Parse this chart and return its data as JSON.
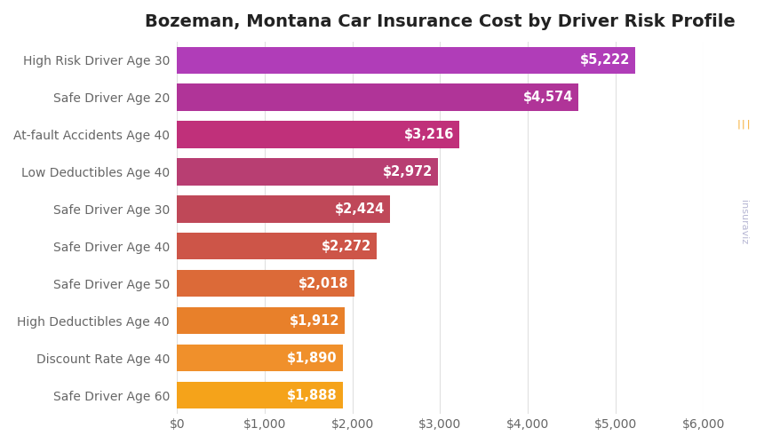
{
  "title": "Bozeman, Montana Car Insurance Cost by Driver Risk Profile",
  "categories": [
    "Safe Driver Age 60",
    "Discount Rate Age 40",
    "High Deductibles Age 40",
    "Safe Driver Age 50",
    "Safe Driver Age 40",
    "Safe Driver Age 30",
    "Low Deductibles Age 40",
    "At-fault Accidents Age 40",
    "Safe Driver Age 20",
    "High Risk Driver Age 30"
  ],
  "values": [
    1888,
    1890,
    1912,
    2018,
    2272,
    2424,
    2972,
    3216,
    4574,
    5222
  ],
  "bar_colors": [
    "#F5A31A",
    "#F0902B",
    "#E8802A",
    "#DC6A38",
    "#CD5548",
    "#BF4858",
    "#B83E72",
    "#C0307A",
    "#B03498",
    "#B03DB8"
  ],
  "xlim": [
    0,
    6000
  ],
  "xticks": [
    0,
    1000,
    2000,
    3000,
    4000,
    5000,
    6000
  ],
  "background_color": "#ffffff",
  "grid_color": "#e0e0e0",
  "label_color": "#ffffff",
  "title_fontsize": 14,
  "tick_fontsize": 10,
  "bar_label_fontsize": 10.5,
  "ytick_fontsize": 10
}
